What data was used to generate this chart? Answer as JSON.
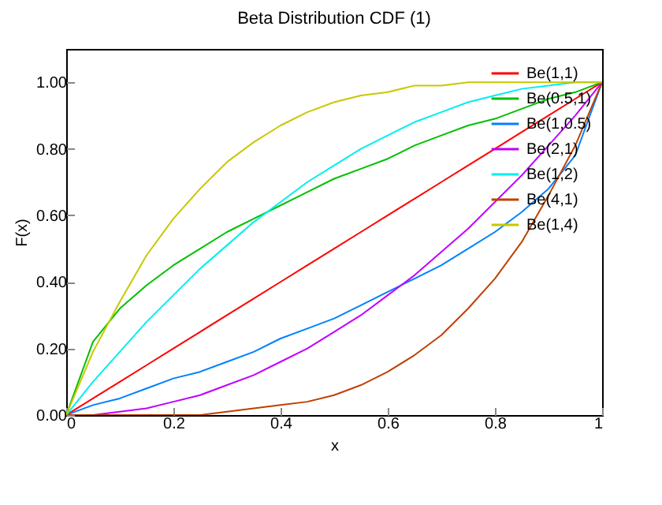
{
  "chart_data": {
    "type": "line",
    "title": "Beta Distribution CDF (1)",
    "xlabel": "x",
    "ylabel": "F(x)",
    "x": [
      0,
      0.05,
      0.1,
      0.15,
      0.2,
      0.25,
      0.3,
      0.35,
      0.4,
      0.45,
      0.5,
      0.55,
      0.6,
      0.65,
      0.7,
      0.75,
      0.8,
      0.85,
      0.9,
      0.95,
      1
    ],
    "series": [
      {
        "name": "Be(1,1)",
        "color": "#ff0000",
        "values": [
          0,
          0.05,
          0.1,
          0.15,
          0.2,
          0.25,
          0.3,
          0.35,
          0.4,
          0.45,
          0.5,
          0.55,
          0.6,
          0.65,
          0.7,
          0.75,
          0.8,
          0.85,
          0.9,
          0.95,
          1
        ]
      },
      {
        "name": "Be(0.5,1)",
        "color": "#00c000",
        "values": [
          0,
          0.22,
          0.32,
          0.39,
          0.45,
          0.5,
          0.55,
          0.59,
          0.63,
          0.67,
          0.71,
          0.74,
          0.77,
          0.81,
          0.84,
          0.87,
          0.89,
          0.92,
          0.95,
          0.97,
          1
        ]
      },
      {
        "name": "Be(1,0.5)",
        "color": "#0080ff",
        "values": [
          0,
          0.03,
          0.05,
          0.08,
          0.11,
          0.13,
          0.16,
          0.19,
          0.23,
          0.26,
          0.29,
          0.33,
          0.37,
          0.41,
          0.45,
          0.5,
          0.55,
          0.61,
          0.68,
          0.78,
          1
        ]
      },
      {
        "name": "Be(2,1)",
        "color": "#c000ff",
        "values": [
          0,
          0,
          0.01,
          0.02,
          0.04,
          0.06,
          0.09,
          0.12,
          0.16,
          0.2,
          0.25,
          0.3,
          0.36,
          0.42,
          0.49,
          0.56,
          0.64,
          0.72,
          0.81,
          0.9,
          1
        ]
      },
      {
        "name": "Be(1,2)",
        "color": "#00eeee",
        "values": [
          0,
          0.1,
          0.19,
          0.28,
          0.36,
          0.44,
          0.51,
          0.58,
          0.64,
          0.7,
          0.75,
          0.8,
          0.84,
          0.88,
          0.91,
          0.94,
          0.96,
          0.98,
          0.99,
          1,
          1
        ]
      },
      {
        "name": "Be(4,1)",
        "color": "#c04000",
        "values": [
          0,
          0,
          0,
          0,
          0,
          0,
          0.01,
          0.02,
          0.03,
          0.04,
          0.06,
          0.09,
          0.13,
          0.18,
          0.24,
          0.32,
          0.41,
          0.52,
          0.66,
          0.81,
          1
        ]
      },
      {
        "name": "Be(1,4)",
        "color": "#c8c800",
        "values": [
          0,
          0.19,
          0.34,
          0.48,
          0.59,
          0.68,
          0.76,
          0.82,
          0.87,
          0.91,
          0.94,
          0.96,
          0.97,
          0.99,
          0.99,
          1,
          1,
          1,
          1,
          1,
          1
        ]
      }
    ],
    "xlim": [
      0,
      1
    ],
    "xticks": [
      0,
      0.2,
      0.4,
      0.6,
      0.8,
      1
    ],
    "ylim": [
      0,
      1.1
    ],
    "yticks": [
      {
        "value": 0,
        "label": "0.00"
      },
      {
        "value": 0.2,
        "label": "0.20"
      },
      {
        "value": 0.4,
        "label": "0.40"
      },
      {
        "value": 0.6,
        "label": "0.60"
      },
      {
        "value": 0.8,
        "label": "0.80"
      },
      {
        "value": 1,
        "label": "1.00"
      }
    ],
    "legend": "top right",
    "marker": "none",
    "line_style": "solid",
    "grid": false
  }
}
